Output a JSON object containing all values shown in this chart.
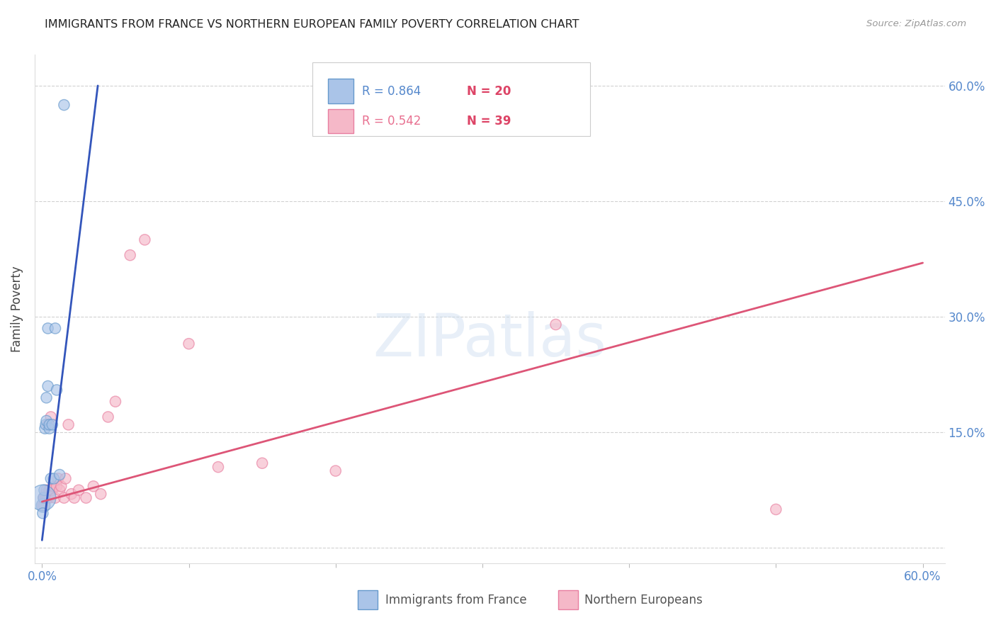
{
  "title": "IMMIGRANTS FROM FRANCE VS NORTHERN EUROPEAN FAMILY POVERTY CORRELATION CHART",
  "source": "Source: ZipAtlas.com",
  "ylabel": "Family Poverty",
  "watermark": "ZIPatlas",
  "legend_r1": "R = 0.864",
  "legend_n1": "N = 20",
  "legend_r2": "R = 0.542",
  "legend_n2": "N = 39",
  "france_color": "#aac4e8",
  "france_edge": "#6699cc",
  "northern_color": "#f5b8c8",
  "northern_edge": "#e87fa0",
  "line_france_color": "#3355bb",
  "line_northern_color": "#dd5577",
  "background_color": "#ffffff",
  "xlim": [
    0.0,
    0.6
  ],
  "ylim": [
    0.0,
    0.62
  ],
  "france_x": [
    0.0008,
    0.001,
    0.0015,
    0.002,
    0.0025,
    0.003,
    0.003,
    0.004,
    0.004,
    0.005,
    0.005,
    0.006,
    0.007,
    0.008,
    0.009,
    0.01,
    0.012,
    0.015,
    0.0005,
    0.0005
  ],
  "france_y": [
    0.055,
    0.065,
    0.075,
    0.155,
    0.16,
    0.165,
    0.195,
    0.21,
    0.285,
    0.155,
    0.16,
    0.09,
    0.16,
    0.09,
    0.285,
    0.205,
    0.095,
    0.575,
    0.065,
    0.045
  ],
  "france_sizes": [
    200,
    120,
    120,
    120,
    120,
    120,
    120,
    120,
    120,
    120,
    120,
    120,
    120,
    120,
    120,
    120,
    120,
    120,
    700,
    120
  ],
  "northern_x": [
    0.0005,
    0.001,
    0.0015,
    0.002,
    0.0025,
    0.003,
    0.003,
    0.004,
    0.004,
    0.005,
    0.005,
    0.006,
    0.006,
    0.007,
    0.008,
    0.009,
    0.01,
    0.011,
    0.012,
    0.013,
    0.015,
    0.016,
    0.018,
    0.02,
    0.022,
    0.025,
    0.03,
    0.035,
    0.04,
    0.045,
    0.05,
    0.06,
    0.07,
    0.1,
    0.12,
    0.15,
    0.2,
    0.35,
    0.5
  ],
  "northern_y": [
    0.055,
    0.065,
    0.055,
    0.065,
    0.07,
    0.075,
    0.065,
    0.16,
    0.065,
    0.075,
    0.065,
    0.075,
    0.17,
    0.075,
    0.08,
    0.065,
    0.08,
    0.09,
    0.075,
    0.08,
    0.065,
    0.09,
    0.16,
    0.07,
    0.065,
    0.075,
    0.065,
    0.08,
    0.07,
    0.17,
    0.19,
    0.38,
    0.4,
    0.265,
    0.105,
    0.11,
    0.1,
    0.29,
    0.05
  ],
  "northern_sizes": [
    120,
    120,
    120,
    120,
    120,
    120,
    120,
    120,
    120,
    120,
    120,
    120,
    120,
    120,
    120,
    120,
    120,
    120,
    120,
    120,
    120,
    120,
    120,
    120,
    120,
    120,
    120,
    120,
    120,
    120,
    120,
    120,
    120,
    120,
    120,
    120,
    120,
    120,
    120
  ],
  "france_line_x": [
    0.0,
    0.038
  ],
  "france_line_y": [
    0.01,
    0.6
  ],
  "northern_line_x": [
    0.0,
    0.6
  ],
  "northern_line_y": [
    0.06,
    0.37
  ]
}
